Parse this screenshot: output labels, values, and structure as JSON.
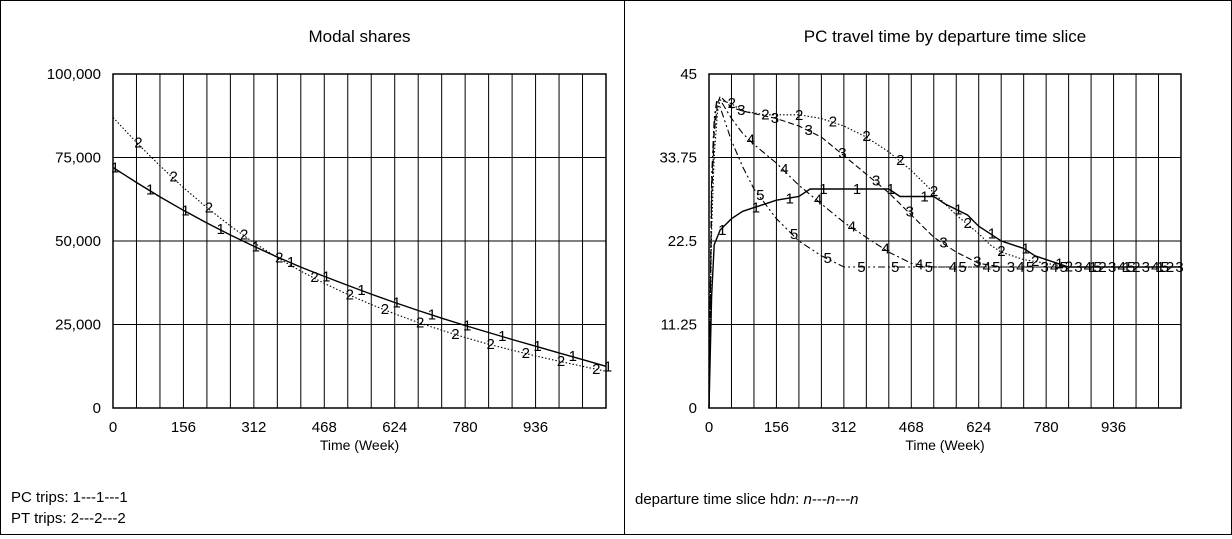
{
  "chart_data": [
    {
      "type": "line",
      "title": "Modal shares",
      "xlabel": "Time (Week)",
      "ylabel": "",
      "xlim": [
        0,
        1092
      ],
      "ylim": [
        0,
        100000
      ],
      "xticks": [
        0,
        156,
        312,
        468,
        624,
        780,
        936
      ],
      "xtick_labels": [
        "0",
        "156",
        "312",
        "468",
        "624",
        "780",
        "936"
      ],
      "yticks": [
        0,
        25000,
        50000,
        75000,
        100000
      ],
      "ytick_labels": [
        "0",
        "25,000",
        "50,000",
        "75,000",
        "100,000"
      ],
      "grid": true,
      "series": [
        {
          "name": "PC trips",
          "marker": "1",
          "style": "solid",
          "x": [
            0,
            52,
            104,
            156,
            208,
            260,
            312,
            364,
            416,
            468,
            520,
            572,
            624,
            676,
            728,
            780,
            832,
            884,
            936,
            988,
            1040,
            1092
          ],
          "y": [
            72000,
            67500,
            63200,
            59200,
            55400,
            51800,
            48400,
            45200,
            42200,
            39400,
            36700,
            34100,
            31600,
            29200,
            26900,
            24700,
            22600,
            20500,
            18500,
            16500,
            14500,
            12500
          ]
        },
        {
          "name": "PT trips",
          "marker": "2",
          "style": "dotted",
          "x": [
            0,
            52,
            104,
            156,
            208,
            260,
            312,
            364,
            416,
            468,
            520,
            572,
            624,
            676,
            728,
            780,
            832,
            884,
            936,
            988,
            1040,
            1092
          ],
          "y": [
            87000,
            79500,
            72500,
            66000,
            60000,
            54500,
            49500,
            45000,
            41000,
            37300,
            34000,
            31000,
            28200,
            25600,
            23300,
            21100,
            19100,
            17300,
            15600,
            14000,
            12500,
            11000
          ]
        }
      ],
      "legend": [
        "PC trips: 1---1---1",
        "PT trips: 2---2---2"
      ]
    },
    {
      "type": "line",
      "title": "PC travel time by departure time slice",
      "xlabel": "Time (Week)",
      "ylabel": "",
      "xlim": [
        0,
        1092
      ],
      "ylim": [
        0,
        45
      ],
      "xticks": [
        0,
        156,
        312,
        468,
        624,
        780,
        936
      ],
      "xtick_labels": [
        "0",
        "156",
        "312",
        "468",
        "624",
        "780",
        "936"
      ],
      "yticks": [
        0,
        11.25,
        22.5,
        33.75,
        45
      ],
      "ytick_labels": [
        "0",
        "11.25",
        "22.5",
        "33.75",
        "45"
      ],
      "grid": true,
      "series": [
        {
          "name": "1",
          "marker": "1",
          "style": "solid",
          "x": [
            0,
            6,
            12,
            26,
            52,
            78,
            104,
            130,
            156,
            208,
            234,
            416,
            442,
            520,
            546,
            598,
            624,
            650,
            676,
            702,
            728,
            754,
            780,
            832,
            1092
          ],
          "y": [
            0,
            15,
            22,
            24,
            25.5,
            26.5,
            27,
            27.5,
            28,
            28.5,
            29.5,
            29.5,
            28.5,
            28.5,
            27.5,
            26,
            24.5,
            23.5,
            22.5,
            22,
            21.5,
            20.5,
            20,
            19,
            19
          ]
        },
        {
          "name": "2",
          "marker": "2",
          "style": "dotted",
          "x": [
            0,
            6,
            12,
            20,
            26,
            52,
            78,
            130,
            208,
            260,
            312,
            364,
            416,
            468,
            520,
            572,
            624,
            650,
            676,
            728,
            780,
            832,
            1092
          ],
          "y": [
            0,
            24,
            34,
            40,
            41.5,
            41,
            40,
            39.5,
            39.5,
            39,
            38,
            36.5,
            34.5,
            32,
            29,
            26,
            23.5,
            22,
            21,
            20,
            19.5,
            19,
            19
          ]
        },
        {
          "name": "3",
          "marker": "3",
          "style": "dashed",
          "x": [
            0,
            6,
            12,
            20,
            26,
            52,
            78,
            156,
            208,
            260,
            312,
            364,
            416,
            468,
            520,
            572,
            624,
            676,
            728,
            1092
          ],
          "y": [
            0,
            28,
            37,
            41,
            42,
            40.5,
            40,
            39,
            38,
            36.5,
            34,
            31.5,
            29,
            26,
            23,
            21,
            19.5,
            19,
            19,
            19
          ]
        },
        {
          "name": "4",
          "marker": "4",
          "style": "dashdot",
          "x": [
            0,
            6,
            12,
            18,
            26,
            52,
            78,
            104,
            156,
            208,
            260,
            312,
            364,
            416,
            468,
            520,
            572,
            1092
          ],
          "y": [
            0,
            30,
            38,
            41.5,
            41.5,
            39,
            37,
            35.5,
            33,
            30,
            27.5,
            25,
            23,
            21,
            19.5,
            19,
            19,
            19
          ]
        },
        {
          "name": "5",
          "marker": "5",
          "style": "dashdotdot",
          "x": [
            0,
            6,
            12,
            18,
            26,
            52,
            78,
            104,
            156,
            208,
            260,
            312,
            364,
            1092
          ],
          "y": [
            0,
            31,
            39,
            41.5,
            40.5,
            36,
            32.5,
            29.5,
            25.5,
            22.5,
            20.5,
            19,
            19,
            19
          ]
        }
      ],
      "legend": [
        "departure time slice hdn: n---n---n"
      ]
    }
  ],
  "captions": {
    "pc_trips": "PC trips: 1---1---1",
    "pt_trips": "PT trips: 2---2---2",
    "departure_prefix": "departure time slice hd",
    "departure_var": "n",
    "departure_sep": ": ",
    "departure_pattern": "n---n---n"
  }
}
